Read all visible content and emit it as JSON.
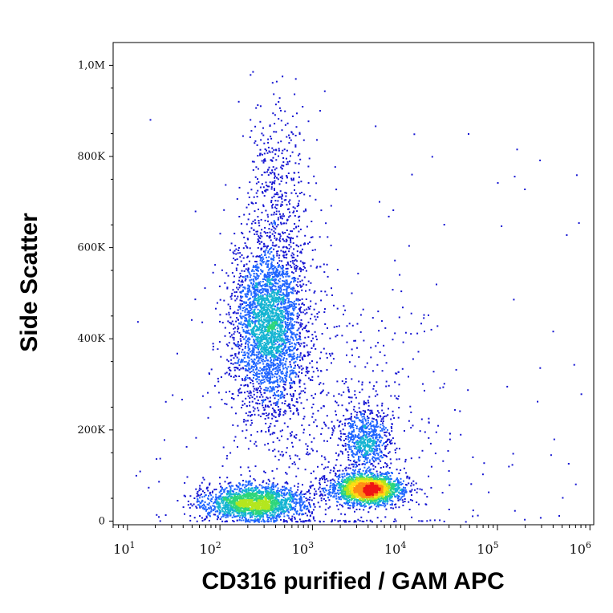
{
  "chart_data": {
    "type": "scatter",
    "plot_style": "density dot plot (flow cytometry)",
    "xlabel": "CD316 purified / GAM APC",
    "ylabel": "Side Scatter",
    "x_scale": "log",
    "xlim": [
      7,
      1100000.0
    ],
    "ylim": [
      -8000,
      1050000
    ],
    "x_ticks": [
      {
        "value": 10,
        "base": "10",
        "exp": "1"
      },
      {
        "value": 100,
        "base": "10",
        "exp": "2"
      },
      {
        "value": 1000,
        "base": "10",
        "exp": "3"
      },
      {
        "value": 10000,
        "base": "10",
        "exp": "4"
      },
      {
        "value": 100000,
        "base": "10",
        "exp": "5"
      },
      {
        "value": 1000000,
        "base": "10",
        "exp": "6"
      }
    ],
    "y_ticks": [
      {
        "value": 0,
        "label": "0"
      },
      {
        "value": 200000,
        "label": "200K"
      },
      {
        "value": 400000,
        "label": "400K"
      },
      {
        "value": 600000,
        "label": "600K"
      },
      {
        "value": 800000,
        "label": "800K"
      },
      {
        "value": 1000000,
        "label": "1,0M"
      }
    ],
    "grid": false,
    "density_colors": [
      "#1414d2",
      "#1e64ff",
      "#14b4d2",
      "#2ed67a",
      "#b4e61e",
      "#ffdc14",
      "#ff8c14",
      "#f01414"
    ],
    "populations": [
      {
        "x_center": 340,
        "y_center": 430000,
        "x_decades_sd": 0.2,
        "y_sd": 95000,
        "weight": 0.34
      },
      {
        "x_center": 430,
        "y_center": 720000,
        "x_decades_sd": 0.17,
        "y_sd": 110000,
        "weight": 0.05
      },
      {
        "x_center": 230,
        "y_center": 40000,
        "x_decades_sd": 0.28,
        "y_sd": 20000,
        "weight": 0.22
      },
      {
        "x_center": 4000,
        "y_center": 70000,
        "x_decades_sd": 0.18,
        "y_sd": 16000,
        "weight": 0.25
      },
      {
        "x_center": 3900,
        "y_center": 180000,
        "x_decades_sd": 0.13,
        "y_sd": 35000,
        "weight": 0.07
      },
      {
        "x_center": 1800,
        "y_center": 200000,
        "x_decades_sd": 0.6,
        "y_sd": 160000,
        "weight": 0.07
      }
    ]
  }
}
